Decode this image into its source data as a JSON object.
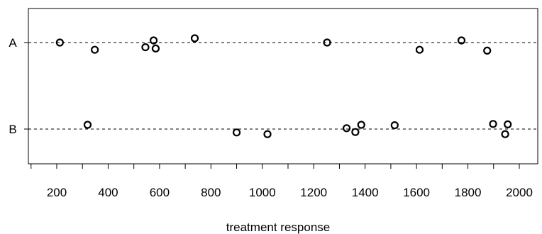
{
  "chart_data": {
    "type": "scatter",
    "xlabel": "treatment response",
    "ylabel": "",
    "title": "",
    "xlim": [
      170,
      2050
    ],
    "x_ticks": [
      200,
      400,
      600,
      800,
      1000,
      1200,
      1400,
      1600,
      1800,
      2000
    ],
    "x_tick_labels": [
      "200",
      "400",
      "600",
      "800",
      "1000",
      "1200",
      "1400",
      "1600",
      "1800",
      "2000"
    ],
    "x_minor_step": 100,
    "categories": [
      "A",
      "B"
    ],
    "grid": "dashed reference line at each category",
    "legend": "none",
    "series": [
      {
        "category": "A",
        "points": [
          {
            "x": 212,
            "y_jitter": 0.0
          },
          {
            "x": 348,
            "y_jitter": -0.17
          },
          {
            "x": 545,
            "y_jitter": -0.11
          },
          {
            "x": 577,
            "y_jitter": 0.05
          },
          {
            "x": 585,
            "y_jitter": -0.14
          },
          {
            "x": 737,
            "y_jitter": 0.1
          },
          {
            "x": 1252,
            "y_jitter": 0.0
          },
          {
            "x": 1612,
            "y_jitter": -0.17
          },
          {
            "x": 1775,
            "y_jitter": 0.05
          },
          {
            "x": 1875,
            "y_jitter": -0.19
          }
        ]
      },
      {
        "category": "B",
        "points": [
          {
            "x": 320,
            "y_jitter": 0.1
          },
          {
            "x": 900,
            "y_jitter": -0.08
          },
          {
            "x": 1020,
            "y_jitter": -0.12
          },
          {
            "x": 1328,
            "y_jitter": 0.02
          },
          {
            "x": 1362,
            "y_jitter": -0.07
          },
          {
            "x": 1385,
            "y_jitter": 0.1
          },
          {
            "x": 1515,
            "y_jitter": 0.09
          },
          {
            "x": 1898,
            "y_jitter": 0.12
          },
          {
            "x": 1945,
            "y_jitter": -0.12
          },
          {
            "x": 1955,
            "y_jitter": 0.11
          }
        ]
      }
    ],
    "colors": {
      "points": "#000000",
      "reference_lines": "#000000",
      "frame": "#000000"
    }
  }
}
